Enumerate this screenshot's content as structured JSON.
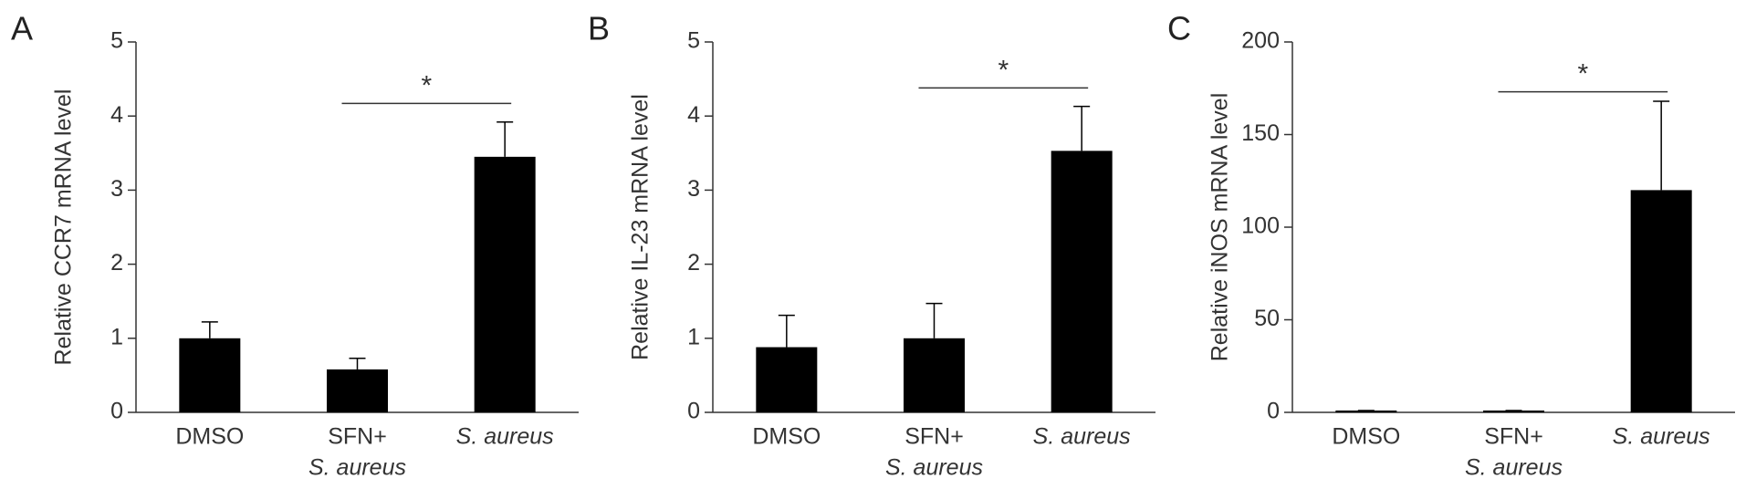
{
  "chart_data": [
    {
      "type": "bar",
      "panel": "A",
      "ylabel": "Relative CCR7 mRNA level",
      "categories": [
        [
          "DMSO"
        ],
        [
          "SFN+",
          "S. aureus"
        ],
        [
          "S. aureus"
        ]
      ],
      "values": [
        1.0,
        0.58,
        3.45
      ],
      "errors": [
        0.22,
        0.15,
        0.47
      ],
      "color": "#000000",
      "ylim": [
        0,
        5
      ],
      "yticks": [
        0,
        1,
        2,
        3,
        4,
        5
      ],
      "annotations": [
        {
          "text": "*",
          "from": 1,
          "to": 2
        }
      ]
    },
    {
      "type": "bar",
      "panel": "B",
      "ylabel": "Relative IL-23 mRNA level",
      "categories": [
        [
          "DMSO"
        ],
        [
          "SFN+",
          "S. aureus"
        ],
        [
          "S. aureus"
        ]
      ],
      "values": [
        0.88,
        1.0,
        3.53
      ],
      "errors": [
        0.43,
        0.47,
        0.6
      ],
      "color": "#000000",
      "ylim": [
        0,
        5
      ],
      "yticks": [
        0,
        1,
        2,
        3,
        4,
        5
      ],
      "annotations": [
        {
          "text": "*",
          "from": 1,
          "to": 2
        }
      ]
    },
    {
      "type": "bar",
      "panel": "C",
      "ylabel": "Relative iNOS mRNA level",
      "categories": [
        [
          "DMSO"
        ],
        [
          "SFN+",
          "S. aureus"
        ],
        [
          "S. aureus"
        ]
      ],
      "values": [
        1,
        1,
        120
      ],
      "errors": [
        0,
        0,
        48
      ],
      "color": "#000000",
      "ylim": [
        0,
        200
      ],
      "yticks": [
        0,
        50,
        100,
        150,
        200
      ],
      "annotations": [
        {
          "text": "*",
          "from": 1,
          "to": 2
        }
      ]
    }
  ]
}
